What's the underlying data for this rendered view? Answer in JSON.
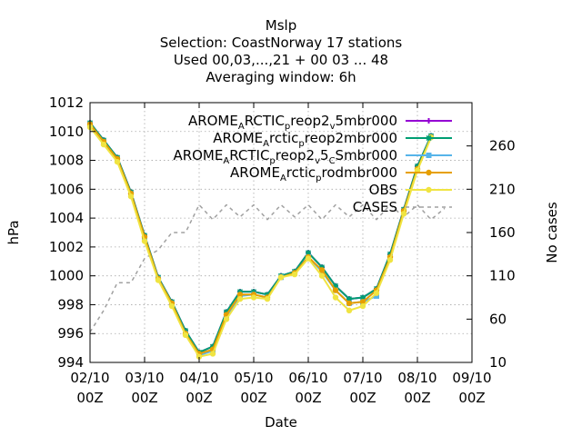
{
  "chart_data": {
    "type": "line",
    "title_lines": [
      "Mslp",
      "Selection: CoastNorway     17 stations",
      "Used  00,03,...,21  + 00 03 ... 48",
      "Averaging window:  6h"
    ],
    "xlabel": "Date",
    "ylabel": "hPa",
    "y2label": "No cases",
    "x_ticks": [
      "02/10 00Z",
      "03/10 00Z",
      "04/10 00Z",
      "05/10 00Z",
      "06/10 00Z",
      "07/10 00Z",
      "08/10 00Z",
      "09/10 00Z"
    ],
    "xlim": [
      "02/10 00Z",
      "09/10 00Z"
    ],
    "ylim": [
      994,
      1012
    ],
    "y_ticks": [
      994,
      996,
      998,
      1000,
      1002,
      1004,
      1006,
      1008,
      1010,
      1012
    ],
    "y2lim": [
      10,
      310
    ],
    "y2_ticks": [
      10,
      60,
      110,
      160,
      210,
      260
    ],
    "grid": true,
    "legend_position": "top-right",
    "x": [
      "02/10 00Z",
      "02/10 06Z",
      "02/10 12Z",
      "02/10 18Z",
      "03/10 00Z",
      "03/10 06Z",
      "03/10 12Z",
      "03/10 18Z",
      "04/10 00Z",
      "04/10 06Z",
      "04/10 12Z",
      "04/10 18Z",
      "05/10 00Z",
      "05/10 06Z",
      "05/10 12Z",
      "05/10 18Z",
      "06/10 00Z",
      "06/10 06Z",
      "06/10 12Z",
      "06/10 18Z",
      "07/10 00Z",
      "07/10 06Z",
      "07/10 12Z",
      "07/10 18Z",
      "08/10 00Z",
      "08/10 06Z",
      "08/10 12Z"
    ],
    "series": [
      {
        "name": "AROME_ARCTIC_preop2_v5mbr000",
        "label_parts": [
          "AROME",
          "A",
          "RCTIC",
          "p",
          "reop2",
          "v",
          "5mbr000"
        ],
        "color": "#9400d3",
        "marker": "plus",
        "axis": "y",
        "values": [
          1010.6,
          1009.4,
          1008.2,
          1005.8,
          1002.8,
          999.9,
          998.2,
          996.2,
          994.7,
          995.1,
          997.5,
          998.9,
          998.9,
          998.7,
          1000.0,
          1000.3,
          1001.6,
          1000.6,
          999.3,
          998.4,
          998.5,
          999.1,
          1001.5,
          1004.6,
          1007.6,
          1009.7,
          null
        ]
      },
      {
        "name": "AROME_Arctic_preop2mbr000",
        "label_parts": [
          "AROME",
          "A",
          "rctic",
          "p",
          "reop2mbr000"
        ],
        "color": "#009e73",
        "marker": "star",
        "axis": "y",
        "values": [
          1010.6,
          1009.4,
          1008.2,
          1005.8,
          1002.8,
          999.9,
          998.2,
          996.2,
          994.7,
          995.1,
          997.5,
          998.9,
          998.9,
          998.7,
          1000.0,
          1000.3,
          1001.6,
          1000.6,
          999.3,
          998.4,
          998.5,
          999.1,
          1001.5,
          1004.6,
          1007.6,
          1009.7,
          null
        ]
      },
      {
        "name": "AROME_ARCTIC_preop2_v5_CSmbr000",
        "label_parts": [
          "AROME",
          "A",
          "RCTIC",
          "p",
          "reop2",
          "v",
          "5",
          "C",
          "Smbr000"
        ],
        "color": "#56b4e9",
        "marker": "square",
        "axis": "y",
        "values": [
          1010.4,
          1009.2,
          1008.0,
          1005.6,
          1002.6,
          999.8,
          998.1,
          996.0,
          994.5,
          994.8,
          997.2,
          998.6,
          998.7,
          998.5,
          999.9,
          1000.2,
          1001.3,
          1000.3,
          999.0,
          998.1,
          998.2,
          998.6,
          null,
          null,
          null,
          null,
          null
        ]
      },
      {
        "name": "AROME_Arctic_prodmbr000",
        "label_parts": [
          "AROME",
          "A",
          "rctic",
          "p",
          "rodmbr000"
        ],
        "color": "#e69f00",
        "marker": "circle",
        "axis": "y",
        "values": [
          1010.5,
          1009.3,
          1008.1,
          1005.7,
          1002.7,
          999.8,
          998.1,
          996.0,
          994.6,
          994.9,
          997.3,
          998.7,
          998.7,
          998.5,
          999.9,
          1000.2,
          1001.3,
          1000.4,
          999.0,
          998.1,
          998.2,
          999.0,
          1001.3,
          1004.5,
          1007.4,
          1009.6,
          null
        ]
      },
      {
        "name": "OBS",
        "label_parts": [
          "OBS"
        ],
        "color": "#f0e442",
        "marker": "circle",
        "axis": "y",
        "values": [
          1010.3,
          1009.1,
          1007.9,
          1005.5,
          1002.4,
          999.7,
          997.9,
          995.9,
          994.4,
          994.6,
          997.0,
          998.4,
          998.5,
          998.4,
          999.9,
          1000.1,
          1001.2,
          1000.0,
          998.5,
          997.6,
          997.9,
          998.8,
          1001.1,
          1004.3,
          1007.3,
          1009.6,
          null
        ]
      },
      {
        "name": "CASES",
        "label_parts": [
          "CASES"
        ],
        "color": "#a0a0a0",
        "marker": "none",
        "dashed": true,
        "axis": "y2",
        "values": [
          45,
          70,
          102,
          102,
          130,
          140,
          160,
          160,
          192,
          175,
          192,
          178,
          192,
          175,
          192,
          178,
          192,
          175,
          192,
          178,
          192,
          175,
          192,
          178,
          192,
          175,
          188
        ]
      }
    ]
  }
}
